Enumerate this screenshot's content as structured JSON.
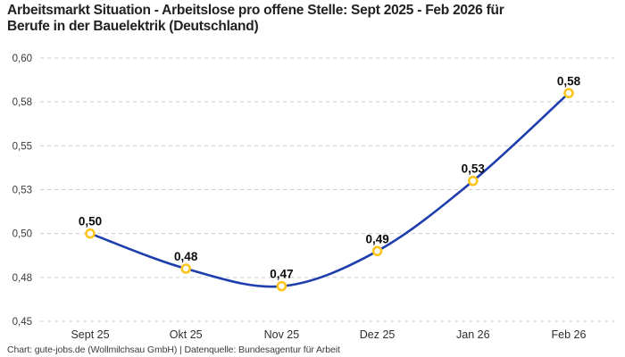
{
  "header": {
    "title_line1": "Arbeitsmarkt Situation - Arbeitslose pro offene Stelle: Sept 2025 - Feb 2026 für",
    "title_line2": "Berufe in der Bauelektrik (Deutschland)"
  },
  "footer": {
    "credit": "Chart: gute-jobs.de (Wollmilchsau GmbH) | Datenquelle: Bundesagentur für Arbeit"
  },
  "chart_data": {
    "type": "line",
    "title": "Arbeitsmarkt Situation - Arbeitslose pro offene Stelle: Sept 2025 - Feb 2026 für Berufe in der Bauelektrik (Deutschland)",
    "categories": [
      "Sept 25",
      "Okt 25",
      "Nov 25",
      "Dez 25",
      "Jan 26",
      "Feb 26"
    ],
    "values": [
      0.5,
      0.48,
      0.47,
      0.49,
      0.53,
      0.58
    ],
    "point_labels": [
      "0,50",
      "0,48",
      "0,47",
      "0,49",
      "0,53",
      "0,58"
    ],
    "xlabel": "",
    "ylabel": "",
    "ylim": [
      0.45,
      0.6
    ],
    "yticks": [
      {
        "value": 0.6,
        "label": "0,60"
      },
      {
        "value": 0.575,
        "label": "0,58"
      },
      {
        "value": 0.55,
        "label": "0,55"
      },
      {
        "value": 0.525,
        "label": "0,53"
      },
      {
        "value": 0.5,
        "label": "0,50"
      },
      {
        "value": 0.475,
        "label": "0,48"
      },
      {
        "value": 0.45,
        "label": "0,45"
      }
    ],
    "grid": "horizontal-dashed",
    "legend": "none",
    "curve": "smooth",
    "colors": {
      "line": "#1e3eae",
      "marker_ring": "#fdc51b",
      "marker_fill": "#ffffff",
      "gridline": "#cccccc",
      "axis_label": "#3a3a3a",
      "point_label": "#0a0a0a"
    }
  }
}
